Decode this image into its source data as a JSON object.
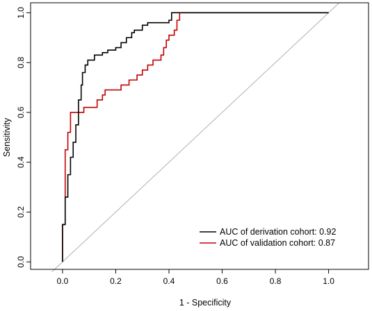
{
  "chart_data": {
    "type": "line",
    "xlabel": "1 - Specificity",
    "ylabel": "Sensitivity",
    "xlim": [
      -0.12,
      1.15
    ],
    "ylim": [
      -0.03,
      1.04
    ],
    "x_ticks": [
      0.0,
      0.2,
      0.4,
      0.6,
      0.8,
      1.0
    ],
    "x_tick_labels": [
      "0.0",
      "0.2",
      "0.4",
      "0.6",
      "0.8",
      "1.0"
    ],
    "y_ticks": [
      0.0,
      0.2,
      0.4,
      0.6,
      0.8,
      1.0
    ],
    "y_tick_labels": [
      "0.0",
      "0.2",
      "0.4",
      "0.6",
      "0.8",
      "1.0"
    ],
    "grid": false,
    "legend_position": "bottom-right",
    "reference_line": {
      "from": [
        -0.04,
        -0.04
      ],
      "to": [
        1.04,
        1.04
      ],
      "color": "#b0b0b0"
    },
    "series": [
      {
        "name": "AUC of derivation cohort: 0.92",
        "color": "#000000",
        "points": [
          [
            0.0,
            0.0
          ],
          [
            0.0,
            0.15
          ],
          [
            0.01,
            0.15
          ],
          [
            0.01,
            0.26
          ],
          [
            0.02,
            0.26
          ],
          [
            0.02,
            0.35
          ],
          [
            0.03,
            0.35
          ],
          [
            0.03,
            0.42
          ],
          [
            0.04,
            0.42
          ],
          [
            0.04,
            0.48
          ],
          [
            0.05,
            0.48
          ],
          [
            0.05,
            0.55
          ],
          [
            0.06,
            0.55
          ],
          [
            0.06,
            0.65
          ],
          [
            0.07,
            0.65
          ],
          [
            0.07,
            0.71
          ],
          [
            0.075,
            0.71
          ],
          [
            0.075,
            0.76
          ],
          [
            0.085,
            0.76
          ],
          [
            0.085,
            0.79
          ],
          [
            0.095,
            0.79
          ],
          [
            0.095,
            0.81
          ],
          [
            0.12,
            0.81
          ],
          [
            0.12,
            0.83
          ],
          [
            0.15,
            0.83
          ],
          [
            0.15,
            0.84
          ],
          [
            0.17,
            0.84
          ],
          [
            0.17,
            0.85
          ],
          [
            0.2,
            0.85
          ],
          [
            0.2,
            0.86
          ],
          [
            0.22,
            0.86
          ],
          [
            0.22,
            0.88
          ],
          [
            0.24,
            0.88
          ],
          [
            0.24,
            0.9
          ],
          [
            0.26,
            0.9
          ],
          [
            0.26,
            0.92
          ],
          [
            0.27,
            0.92
          ],
          [
            0.27,
            0.93
          ],
          [
            0.3,
            0.93
          ],
          [
            0.3,
            0.95
          ],
          [
            0.32,
            0.95
          ],
          [
            0.32,
            0.96
          ],
          [
            0.4,
            0.96
          ],
          [
            0.4,
            0.97
          ],
          [
            0.41,
            0.97
          ],
          [
            0.41,
            1.0
          ],
          [
            0.44,
            1.0
          ],
          [
            1.0,
            1.0
          ]
        ]
      },
      {
        "name": "AUC of validation cohort:  0.87",
        "color": "#c00000",
        "points": [
          [
            0.0,
            0.0
          ],
          [
            0.0,
            0.15
          ],
          [
            0.01,
            0.15
          ],
          [
            0.01,
            0.45
          ],
          [
            0.02,
            0.45
          ],
          [
            0.02,
            0.52
          ],
          [
            0.03,
            0.52
          ],
          [
            0.03,
            0.6
          ],
          [
            0.08,
            0.6
          ],
          [
            0.08,
            0.62
          ],
          [
            0.13,
            0.62
          ],
          [
            0.13,
            0.65
          ],
          [
            0.15,
            0.65
          ],
          [
            0.15,
            0.67
          ],
          [
            0.16,
            0.67
          ],
          [
            0.16,
            0.69
          ],
          [
            0.22,
            0.69
          ],
          [
            0.22,
            0.71
          ],
          [
            0.25,
            0.71
          ],
          [
            0.25,
            0.73
          ],
          [
            0.28,
            0.73
          ],
          [
            0.28,
            0.75
          ],
          [
            0.3,
            0.75
          ],
          [
            0.3,
            0.77
          ],
          [
            0.32,
            0.77
          ],
          [
            0.32,
            0.79
          ],
          [
            0.34,
            0.79
          ],
          [
            0.34,
            0.81
          ],
          [
            0.37,
            0.81
          ],
          [
            0.37,
            0.83
          ],
          [
            0.38,
            0.83
          ],
          [
            0.38,
            0.86
          ],
          [
            0.39,
            0.86
          ],
          [
            0.39,
            0.89
          ],
          [
            0.4,
            0.89
          ],
          [
            0.4,
            0.91
          ],
          [
            0.42,
            0.91
          ],
          [
            0.42,
            0.93
          ],
          [
            0.43,
            0.93
          ],
          [
            0.43,
            0.97
          ],
          [
            0.44,
            0.97
          ],
          [
            0.44,
            1.0
          ],
          [
            1.0,
            1.0
          ]
        ]
      }
    ]
  }
}
